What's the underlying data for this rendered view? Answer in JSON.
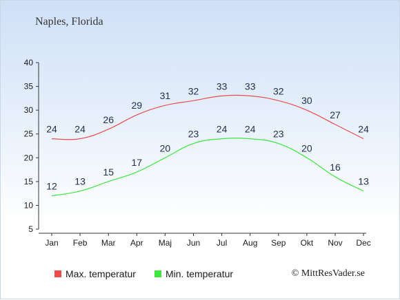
{
  "chart_data": {
    "type": "line",
    "title": "Naples, Florida",
    "categories": [
      "Jan",
      "Feb",
      "Mar",
      "Apr",
      "Maj",
      "Jun",
      "Jul",
      "Aug",
      "Sep",
      "Okt",
      "Nov",
      "Dec"
    ],
    "ylim": [
      5,
      40
    ],
    "yticks": [
      5,
      10,
      15,
      20,
      25,
      30,
      35,
      40
    ],
    "series": [
      {
        "name": "Max. temperatur",
        "color": "#ef4a4a",
        "values": [
          24,
          24,
          26,
          29,
          31,
          32,
          33,
          33,
          32,
          30,
          27,
          24
        ]
      },
      {
        "name": "Min. temperatur",
        "color": "#3ee63e",
        "values": [
          12,
          13,
          15,
          17,
          20,
          23,
          24,
          24,
          23,
          20,
          16,
          13
        ]
      }
    ],
    "grid": false,
    "legend": "bottom-left"
  },
  "copyright": "© MittResVader.se"
}
